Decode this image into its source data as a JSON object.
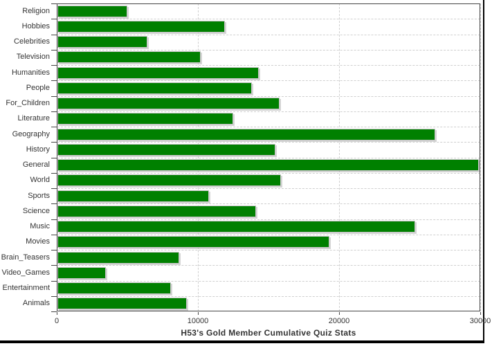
{
  "chart_data": {
    "type": "bar",
    "orientation": "horizontal",
    "title": "H53's Gold Member Cumulative Quiz Stats",
    "categories": [
      "Religion",
      "Hobbies",
      "Celebrities",
      "Television",
      "Humanities",
      "People",
      "For_Children",
      "Literature",
      "Geography",
      "History",
      "General",
      "World",
      "Sports",
      "Science",
      "Music",
      "Movies",
      "Brain_Teasers",
      "Video_Games",
      "Entertainment",
      "Animals"
    ],
    "values": [
      5000,
      11900,
      6400,
      10200,
      14300,
      13800,
      15800,
      12500,
      26800,
      15500,
      29900,
      15900,
      10800,
      14100,
      25400,
      19300,
      8700,
      3500,
      8100,
      9200
    ],
    "xlim": [
      0,
      30000
    ],
    "x_ticks": [
      0,
      10000,
      20000,
      30000
    ],
    "x_tick_labels": [
      "0",
      "10000",
      "20000",
      "30000"
    ],
    "xlabel": "",
    "ylabel": "",
    "legend": "none",
    "grid": "dashed, vertical at value ticks and horizontal at category boundaries",
    "colors": {
      "bar": "#008000",
      "grid": "#cfcfcf",
      "axis": "#444444",
      "text": "#333333",
      "frame": "#000000",
      "background": "#ffffff"
    }
  }
}
